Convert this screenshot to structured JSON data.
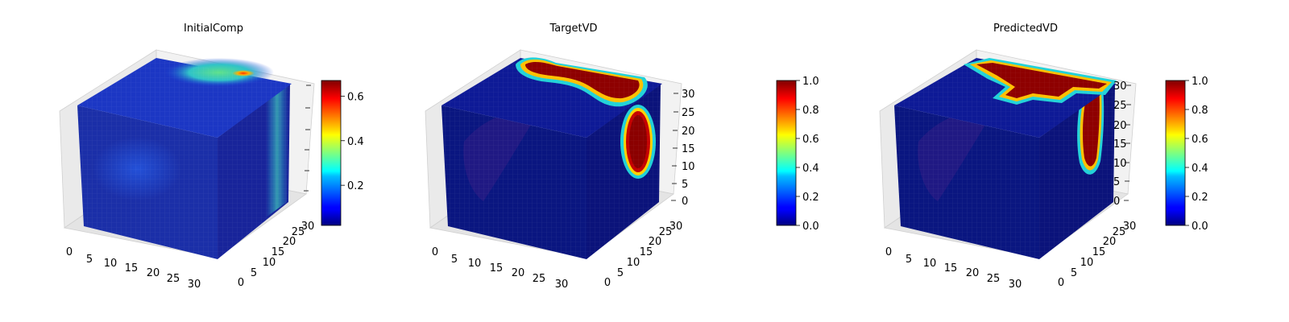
{
  "chart_data": [
    {
      "type": "3d-voxel",
      "title": "InitialComp",
      "colormap": "jet",
      "x_ticks": [
        "0",
        "5",
        "10",
        "15",
        "20",
        "25",
        "30"
      ],
      "y_ticks": [
        "0",
        "5",
        "10",
        "15",
        "20",
        "25",
        "30"
      ],
      "z_ticks": [],
      "colorbar": {
        "min": 0.02,
        "max": 0.67,
        "ticks": [
          "0.2",
          "0.4",
          "0.6"
        ],
        "tick_values": [
          0.2,
          0.4,
          0.6
        ]
      }
    },
    {
      "type": "3d-voxel",
      "title": "TargetVD",
      "colormap": "jet",
      "x_ticks": [
        "0",
        "5",
        "10",
        "15",
        "20",
        "25",
        "30"
      ],
      "y_ticks": [
        "0",
        "5",
        "10",
        "15",
        "20",
        "25",
        "30"
      ],
      "z_ticks": [
        "0",
        "5",
        "10",
        "15",
        "20",
        "25",
        "30"
      ],
      "colorbar": {
        "min": 0.0,
        "max": 1.0,
        "ticks": [
          "0.0",
          "0.2",
          "0.4",
          "0.6",
          "0.8",
          "1.0"
        ],
        "tick_values": [
          0,
          0.2,
          0.4,
          0.6,
          0.8,
          1.0
        ]
      }
    },
    {
      "type": "3d-voxel",
      "title": "PredictedVD",
      "colormap": "jet",
      "x_ticks": [
        "0",
        "5",
        "10",
        "15",
        "20",
        "25",
        "30"
      ],
      "y_ticks": [
        "0",
        "5",
        "10",
        "15",
        "20",
        "25",
        "30"
      ],
      "z_ticks": [
        "0",
        "5",
        "10",
        "15",
        "20",
        "25",
        "30"
      ],
      "colorbar": {
        "min": 0.0,
        "max": 1.0,
        "ticks": [
          "0.0",
          "0.2",
          "0.4",
          "0.6",
          "0.8",
          "1.0"
        ],
        "tick_values": [
          0,
          0.2,
          0.4,
          0.6,
          0.8,
          1.0
        ]
      }
    }
  ]
}
